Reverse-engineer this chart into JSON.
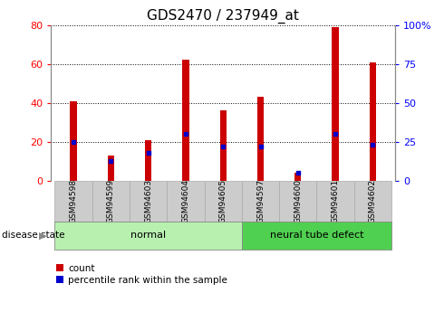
{
  "title": "GDS2470 / 237949_at",
  "samples": [
    "GSM94598",
    "GSM94599",
    "GSM94603",
    "GSM94604",
    "GSM94605",
    "GSM94597",
    "GSM94600",
    "GSM94601",
    "GSM94602"
  ],
  "counts": [
    41,
    13,
    21,
    62,
    36,
    43,
    4,
    79,
    61
  ],
  "percentiles": [
    25,
    13,
    18,
    30,
    22,
    22,
    5,
    30,
    23
  ],
  "groups": [
    {
      "label": "normal",
      "start": 0,
      "end": 5,
      "color": "#b8f0b0",
      "edgecolor": "#888888"
    },
    {
      "label": "neural tube defect",
      "start": 5,
      "end": 9,
      "color": "#50d050",
      "edgecolor": "#888888"
    }
  ],
  "bar_color": "#cc0000",
  "pct_color": "#0000cc",
  "left_ylim": [
    0,
    80
  ],
  "right_ylim": [
    0,
    100
  ],
  "left_yticks": [
    0,
    20,
    40,
    60,
    80
  ],
  "right_yticks": [
    0,
    25,
    50,
    75,
    100
  ],
  "right_yticklabels": [
    "0",
    "25",
    "50",
    "75",
    "100%"
  ],
  "title_fontsize": 11,
  "bar_width": 0.18,
  "disease_state_label": "disease state",
  "legend_count": "count",
  "legend_pct": "percentile rank within the sample",
  "bg_plot": "#ffffff",
  "bg_xtick": "#cccccc",
  "xtick_box_edge": "#aaaaaa"
}
